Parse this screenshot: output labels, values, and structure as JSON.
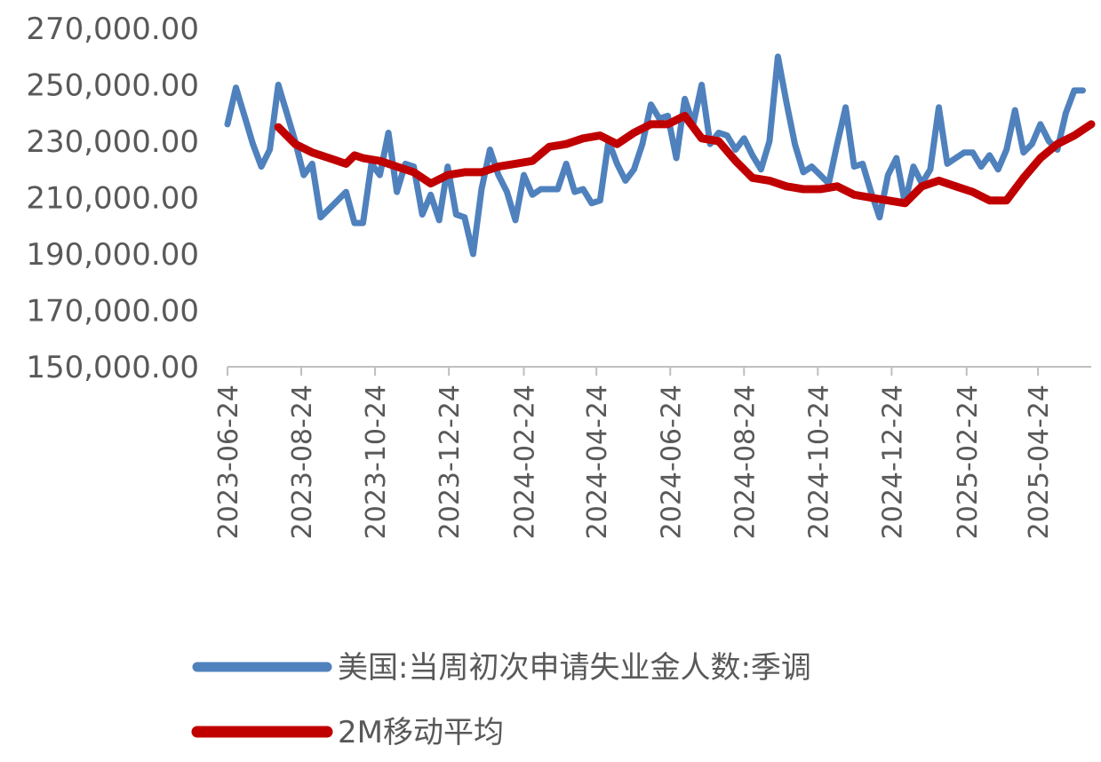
{
  "chart_data": {
    "type": "line",
    "title": "",
    "xlabel": "",
    "ylabel": "",
    "ylim": [
      150000,
      270000
    ],
    "y_ticks": [
      "270,000.00",
      "250,000.00",
      "230,000.00",
      "210,000.00",
      "190,000.00",
      "170,000.00",
      "150,000.00"
    ],
    "x_ticks": [
      "2023-06-24",
      "2023-08-24",
      "2023-10-24",
      "2023-12-24",
      "2024-02-24",
      "2024-04-24",
      "2024-06-24",
      "2024-08-24",
      "2024-10-24",
      "2024-12-24",
      "2025-02-24",
      "2025-04-24"
    ],
    "xlim": [
      "2023-06-24",
      "2025-06-07"
    ],
    "grid": false,
    "legend_position": "bottom",
    "series": [
      {
        "name": "美国:当周初次申请失业金人数:季调",
        "color": "#4F81BD",
        "x": [
          "2023-06-24",
          "2023-07-01",
          "2023-07-08",
          "2023-07-15",
          "2023-07-22",
          "2023-07-29",
          "2023-08-05",
          "2023-08-12",
          "2023-08-19",
          "2023-08-26",
          "2023-09-02",
          "2023-09-09",
          "2023-09-16",
          "2023-09-23",
          "2023-09-30",
          "2023-10-07",
          "2023-10-14",
          "2023-10-21",
          "2023-10-28",
          "2023-11-04",
          "2023-11-11",
          "2023-11-18",
          "2023-11-25",
          "2023-12-02",
          "2023-12-09",
          "2023-12-16",
          "2023-12-23",
          "2023-12-30",
          "2024-01-06",
          "2024-01-13",
          "2024-01-20",
          "2024-01-27",
          "2024-02-03",
          "2024-02-10",
          "2024-02-17",
          "2024-02-24",
          "2024-03-02",
          "2024-03-09",
          "2024-03-16",
          "2024-03-23",
          "2024-03-30",
          "2024-04-06",
          "2024-04-13",
          "2024-04-20",
          "2024-04-27",
          "2024-05-04",
          "2024-05-11",
          "2024-05-18",
          "2024-05-25",
          "2024-06-01",
          "2024-06-08",
          "2024-06-15",
          "2024-06-22",
          "2024-06-29",
          "2024-07-06",
          "2024-07-13",
          "2024-07-20",
          "2024-07-27",
          "2024-08-03",
          "2024-08-10",
          "2024-08-17",
          "2024-08-24",
          "2024-08-31",
          "2024-09-07",
          "2024-09-14",
          "2024-09-21",
          "2024-09-28",
          "2024-10-05",
          "2024-10-12",
          "2024-10-19",
          "2024-10-26",
          "2024-11-02",
          "2024-11-09",
          "2024-11-16",
          "2024-11-23",
          "2024-11-30",
          "2024-12-07",
          "2024-12-14",
          "2024-12-21",
          "2024-12-28",
          "2025-01-04",
          "2025-01-11",
          "2025-01-18",
          "2025-01-25",
          "2025-02-01",
          "2025-02-08",
          "2025-02-15",
          "2025-02-22",
          "2025-03-01",
          "2025-03-08",
          "2025-03-15",
          "2025-03-22",
          "2025-03-29",
          "2025-04-05",
          "2025-04-12",
          "2025-04-19",
          "2025-04-26",
          "2025-05-03",
          "2025-05-10",
          "2025-05-17",
          "2025-05-24",
          "2025-05-31"
        ],
        "values": [
          236000,
          249000,
          239000,
          229000,
          221000,
          227000,
          250000,
          240000,
          230000,
          218000,
          222000,
          203000,
          206000,
          209000,
          212000,
          201000,
          201000,
          222000,
          218000,
          233000,
          212000,
          222000,
          221000,
          204000,
          211000,
          202000,
          221000,
          204000,
          203000,
          190000,
          213000,
          227000,
          218000,
          212000,
          202000,
          218000,
          211000,
          213000,
          213000,
          213000,
          222000,
          212000,
          213000,
          208000,
          209000,
          230000,
          222000,
          216000,
          220000,
          229000,
          243000,
          238000,
          239000,
          224000,
          245000,
          236000,
          250000,
          229000,
          233000,
          232000,
          227000,
          231000,
          225000,
          220000,
          230000,
          260000,
          244000,
          229000,
          219000,
          221000,
          218000,
          215000,
          229000,
          242000,
          221000,
          222000,
          212000,
          203000,
          218000,
          224000,
          208000,
          221000,
          215000,
          220000,
          242000,
          222000,
          224000,
          226000,
          226000,
          221000,
          225000,
          220000,
          227000,
          241000,
          226000,
          229000,
          236000,
          230000,
          227000,
          240000,
          248000,
          248000
        ]
      },
      {
        "name": "2M移动平均",
        "color": "#C00000",
        "x": [
          "2023-08-05",
          "2023-08-19",
          "2023-09-02",
          "2023-09-16",
          "2023-09-30",
          "2023-10-07",
          "2023-10-14",
          "2023-10-28",
          "2023-11-11",
          "2023-11-25",
          "2023-12-09",
          "2023-12-23",
          "2024-01-06",
          "2024-01-20",
          "2024-02-03",
          "2024-02-17",
          "2024-03-02",
          "2024-03-16",
          "2024-03-30",
          "2024-04-13",
          "2024-04-27",
          "2024-05-11",
          "2024-05-25",
          "2024-06-08",
          "2024-06-22",
          "2024-07-06",
          "2024-07-20",
          "2024-08-03",
          "2024-08-17",
          "2024-08-31",
          "2024-09-14",
          "2024-09-28",
          "2024-10-12",
          "2024-10-26",
          "2024-11-09",
          "2024-11-23",
          "2024-12-07",
          "2024-12-21",
          "2025-01-04",
          "2025-01-18",
          "2025-02-01",
          "2025-02-15",
          "2025-03-01",
          "2025-03-15",
          "2025-03-29",
          "2025-04-12",
          "2025-04-26",
          "2025-05-10",
          "2025-05-24",
          "2025-06-07"
        ],
        "values": [
          235000,
          229000,
          226000,
          224000,
          222000,
          225000,
          224000,
          223000,
          221000,
          219000,
          215000,
          218000,
          219000,
          219000,
          221000,
          222000,
          223000,
          228000,
          229000,
          231000,
          232000,
          229000,
          233000,
          236000,
          236000,
          239000,
          231000,
          230000,
          223000,
          217000,
          216000,
          214000,
          213000,
          213000,
          214000,
          211000,
          210000,
          209000,
          208000,
          214000,
          216000,
          214000,
          212000,
          209000,
          209000,
          217000,
          224000,
          229000,
          232000,
          236000
        ]
      }
    ]
  }
}
